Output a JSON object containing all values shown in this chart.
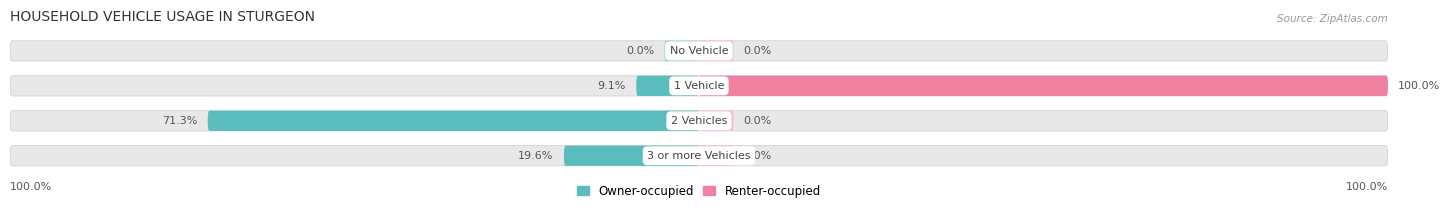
{
  "title": "HOUSEHOLD VEHICLE USAGE IN STURGEON",
  "source": "Source: ZipAtlas.com",
  "categories": [
    "No Vehicle",
    "1 Vehicle",
    "2 Vehicles",
    "3 or more Vehicles"
  ],
  "owner_values": [
    0.0,
    9.1,
    71.3,
    19.6
  ],
  "renter_values": [
    0.0,
    100.0,
    0.0,
    0.0
  ],
  "owner_color": "#5bbcbe",
  "renter_color": "#f080a0",
  "renter_zero_color": "#f8b8c8",
  "owner_zero_color": "#90d4d8",
  "bg_bar_color": "#e8e8e8",
  "title_fontsize": 10,
  "label_fontsize": 8,
  "category_fontsize": 8,
  "legend_fontsize": 8.5,
  "source_fontsize": 7.5,
  "axis_label_left": "100.0%",
  "axis_label_right": "100.0%",
  "stub_size": 5.0
}
